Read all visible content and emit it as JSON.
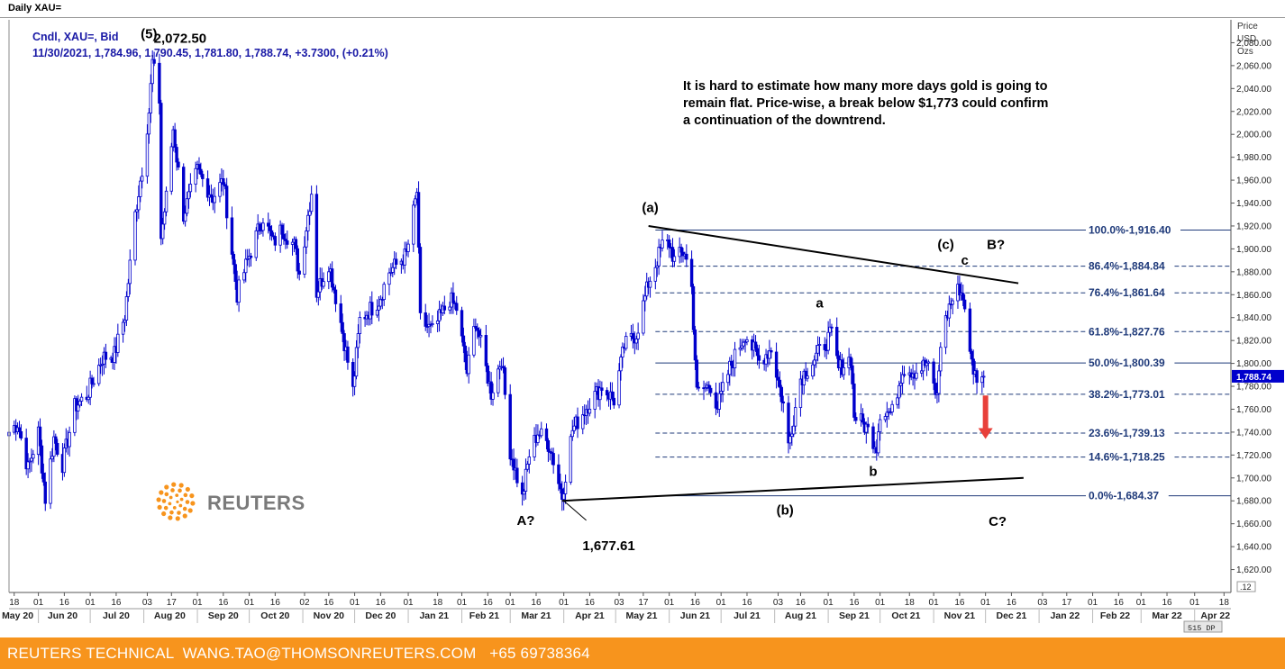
{
  "window": {
    "title": "Daily XAU="
  },
  "legend": {
    "line1": "Cndl, XAU=, Bid",
    "line2": "11/30/2021, 1,784.96, 1,790.45, 1,781.80, 1,788.74, +3.7300, (+0.21%)"
  },
  "commentary": {
    "lines": [
      "It is hard to estimate how many more days gold is going to",
      "remain flat. Price-wise, a break below $1,773 could confirm",
      "a continuation of the downtrend."
    ]
  },
  "axis_header": {
    "line1": "Price",
    "line2": "USD",
    "line3": "Ozs"
  },
  "footer": {
    "text": "REUTERS TECHNICAL  WANG.TAO@THOMSONREUTERS.COM   +65 69738364"
  },
  "branding": {
    "logo_text": "REUTERS",
    "logo_icon": "reuters-dot-ring-icon"
  },
  "status": {
    "scale": "515 DP",
    "corner": ".12"
  },
  "colors": {
    "candle": "#0000cc",
    "accent": "#f7941d",
    "fib_line": "#1f3a7a",
    "arrow": "#e8403a",
    "last_price_bg": "#0000cc"
  },
  "chart_data": {
    "type": "candlestick",
    "title": "Daily XAU=",
    "ylabel": "Price USD Ozs",
    "ylim": [
      1600,
      2100
    ],
    "yticks": [
      1620,
      1640,
      1660,
      1680,
      1700,
      1720,
      1740,
      1760,
      1780,
      1800,
      1820,
      1840,
      1860,
      1880,
      1900,
      1920,
      1940,
      1960,
      1980,
      2000,
      2020,
      2040,
      2060,
      2080
    ],
    "ytick_labels": [
      "1,620.00",
      "1,640.00",
      "1,660.00",
      "1,680.00",
      "1,700.00",
      "1,720.00",
      "1,740.00",
      "1,760.00",
      "1,780.00",
      "1,800.00",
      "1,820.00",
      "1,840.00",
      "1,860.00",
      "1,880.00",
      "1,900.00",
      "1,920.00",
      "1,940.00",
      "1,960.00",
      "1,980.00",
      "2,000.00",
      "2,020.00",
      "2,040.00",
      "2,060.00",
      "2,080.00"
    ],
    "last_price": 1788.74,
    "last_price_label": "1,788.74",
    "x_start": "2020-05-15",
    "x_end": "2022-04-22",
    "day_ticks": [
      [
        "2020-05-18",
        "18"
      ],
      [
        "2020-06-01",
        "01"
      ],
      [
        "2020-06-16",
        "16"
      ],
      [
        "2020-07-01",
        "01"
      ],
      [
        "2020-07-16",
        "16"
      ],
      [
        "2020-08-03",
        "03"
      ],
      [
        "2020-08-17",
        "17"
      ],
      [
        "2020-09-01",
        "01"
      ],
      [
        "2020-09-16",
        "16"
      ],
      [
        "2020-10-01",
        "01"
      ],
      [
        "2020-10-16",
        "16"
      ],
      [
        "2020-11-02",
        "02"
      ],
      [
        "2020-11-16",
        "16"
      ],
      [
        "2020-12-01",
        "01"
      ],
      [
        "2020-12-16",
        "16"
      ],
      [
        "2021-01-01",
        "01"
      ],
      [
        "2021-01-18",
        "18"
      ],
      [
        "2021-02-01",
        "01"
      ],
      [
        "2021-02-16",
        "16"
      ],
      [
        "2021-03-01",
        "01"
      ],
      [
        "2021-03-16",
        "16"
      ],
      [
        "2021-04-01",
        "01"
      ],
      [
        "2021-04-16",
        "16"
      ],
      [
        "2021-05-03",
        "03"
      ],
      [
        "2021-05-17",
        "17"
      ],
      [
        "2021-06-01",
        "01"
      ],
      [
        "2021-06-16",
        "16"
      ],
      [
        "2021-07-01",
        "01"
      ],
      [
        "2021-07-16",
        "16"
      ],
      [
        "2021-08-03",
        "03"
      ],
      [
        "2021-08-16",
        "16"
      ],
      [
        "2021-09-01",
        "01"
      ],
      [
        "2021-09-16",
        "16"
      ],
      [
        "2021-10-01",
        "01"
      ],
      [
        "2021-10-18",
        "18"
      ],
      [
        "2021-11-01",
        "01"
      ],
      [
        "2021-11-16",
        "16"
      ],
      [
        "2021-12-01",
        "01"
      ],
      [
        "2021-12-16",
        "16"
      ],
      [
        "2022-01-03",
        "03"
      ],
      [
        "2022-01-17",
        "17"
      ],
      [
        "2022-02-01",
        "01"
      ],
      [
        "2022-02-16",
        "16"
      ],
      [
        "2022-03-01",
        "01"
      ],
      [
        "2022-03-16",
        "16"
      ],
      [
        "2022-04-01",
        "01"
      ],
      [
        "2022-04-18",
        "18"
      ]
    ],
    "month_labels": [
      [
        "2020-05-20",
        "May 20"
      ],
      [
        "2020-06-15",
        "Jun 20"
      ],
      [
        "2020-07-16",
        "Jul 20"
      ],
      [
        "2020-08-16",
        "Aug 20"
      ],
      [
        "2020-09-16",
        "Sep 20"
      ],
      [
        "2020-10-16",
        "Oct 20"
      ],
      [
        "2020-11-16",
        "Nov 20"
      ],
      [
        "2020-12-16",
        "Dec 20"
      ],
      [
        "2021-01-16",
        "Jan 21"
      ],
      [
        "2021-02-14",
        "Feb 21"
      ],
      [
        "2021-03-16",
        "Mar 21"
      ],
      [
        "2021-04-16",
        "Apr 21"
      ],
      [
        "2021-05-16",
        "May 21"
      ],
      [
        "2021-06-16",
        "Jun 21"
      ],
      [
        "2021-07-16",
        "Jul 21"
      ],
      [
        "2021-08-16",
        "Aug 21"
      ],
      [
        "2021-09-16",
        "Sep 21"
      ],
      [
        "2021-10-16",
        "Oct 21"
      ],
      [
        "2021-11-16",
        "Nov 21"
      ],
      [
        "2021-12-16",
        "Dec 21"
      ],
      [
        "2022-01-16",
        "Jan 22"
      ],
      [
        "2022-02-14",
        "Feb 22"
      ],
      [
        "2022-03-16",
        "Mar 22"
      ],
      [
        "2022-04-13",
        "Apr 22"
      ]
    ],
    "price_path": [
      [
        "2020-05-15",
        1740
      ],
      [
        "2020-05-20",
        1748
      ],
      [
        "2020-05-26",
        1708
      ],
      [
        "2020-06-01",
        1740
      ],
      [
        "2020-06-05",
        1682
      ],
      [
        "2020-06-10",
        1735
      ],
      [
        "2020-06-15",
        1712
      ],
      [
        "2020-06-22",
        1762
      ],
      [
        "2020-06-29",
        1772
      ],
      [
        "2020-07-08",
        1805
      ],
      [
        "2020-07-15",
        1808
      ],
      [
        "2020-07-21",
        1842
      ],
      [
        "2020-07-27",
        1930
      ],
      [
        "2020-07-31",
        1970
      ],
      [
        "2020-08-04",
        2020
      ],
      [
        "2020-08-06",
        2063
      ],
      [
        "2020-08-10",
        2030
      ],
      [
        "2020-08-11",
        1910
      ],
      [
        "2020-08-14",
        1945
      ],
      [
        "2020-08-18",
        2005
      ],
      [
        "2020-08-24",
        1930
      ],
      [
        "2020-09-01",
        1968
      ],
      [
        "2020-09-10",
        1945
      ],
      [
        "2020-09-16",
        1960
      ],
      [
        "2020-09-24",
        1860
      ],
      [
        "2020-09-30",
        1890
      ],
      [
        "2020-10-09",
        1928
      ],
      [
        "2020-10-15",
        1905
      ],
      [
        "2020-10-20",
        1918
      ],
      [
        "2020-10-27",
        1903
      ],
      [
        "2020-10-30",
        1878
      ],
      [
        "2020-11-06",
        1950
      ],
      [
        "2020-11-09",
        1862
      ],
      [
        "2020-11-16",
        1888
      ],
      [
        "2020-11-23",
        1836
      ],
      [
        "2020-11-30",
        1776
      ],
      [
        "2020-12-04",
        1838
      ],
      [
        "2020-12-15",
        1855
      ],
      [
        "2020-12-21",
        1880
      ],
      [
        "2020-12-31",
        1895
      ],
      [
        "2021-01-06",
        1950
      ],
      [
        "2021-01-08",
        1838
      ],
      [
        "2021-01-15",
        1828
      ],
      [
        "2021-01-25",
        1856
      ],
      [
        "2021-01-29",
        1848
      ],
      [
        "2021-02-04",
        1792
      ],
      [
        "2021-02-09",
        1838
      ],
      [
        "2021-02-18",
        1774
      ],
      [
        "2021-02-24",
        1805
      ],
      [
        "2021-03-01",
        1724
      ],
      [
        "2021-03-08",
        1682
      ],
      [
        "2021-03-12",
        1720
      ],
      [
        "2021-03-17",
        1740
      ],
      [
        "2021-03-24",
        1728
      ],
      [
        "2021-03-31",
        1684
      ],
      [
        "2021-04-06",
        1742
      ],
      [
        "2021-04-15",
        1764
      ],
      [
        "2021-04-23",
        1780
      ],
      [
        "2021-04-30",
        1768
      ],
      [
        "2021-05-06",
        1815
      ],
      [
        "2021-05-13",
        1826
      ],
      [
        "2021-05-20",
        1870
      ],
      [
        "2021-05-28",
        1903
      ],
      [
        "2021-06-01",
        1905
      ],
      [
        "2021-06-04",
        1890
      ],
      [
        "2021-06-10",
        1898
      ],
      [
        "2021-06-14",
        1866
      ],
      [
        "2021-06-17",
        1774
      ],
      [
        "2021-06-25",
        1781
      ],
      [
        "2021-06-29",
        1762
      ],
      [
        "2021-07-06",
        1796
      ],
      [
        "2021-07-15",
        1826
      ],
      [
        "2021-07-23",
        1802
      ],
      [
        "2021-07-30",
        1813
      ],
      [
        "2021-08-06",
        1764
      ],
      [
        "2021-08-09",
        1728
      ],
      [
        "2021-08-16",
        1787
      ],
      [
        "2021-08-24",
        1804
      ],
      [
        "2021-09-03",
        1826
      ],
      [
        "2021-09-07",
        1795
      ],
      [
        "2021-09-14",
        1805
      ],
      [
        "2021-09-16",
        1755
      ],
      [
        "2021-09-23",
        1744
      ],
      [
        "2021-09-29",
        1728
      ],
      [
        "2021-10-01",
        1758
      ],
      [
        "2021-10-08",
        1757
      ],
      [
        "2021-10-14",
        1796
      ],
      [
        "2021-10-22",
        1793
      ],
      [
        "2021-10-28",
        1800
      ],
      [
        "2021-11-03",
        1770
      ],
      [
        "2021-11-05",
        1818
      ],
      [
        "2021-11-10",
        1850
      ],
      [
        "2021-11-16",
        1866
      ],
      [
        "2021-11-19",
        1852
      ],
      [
        "2021-11-22",
        1806
      ],
      [
        "2021-11-25",
        1790
      ],
      [
        "2021-11-30",
        1788.74
      ]
    ],
    "fib_levels": [
      {
        "label": "100.0%-1,916.40",
        "value": 1916.4,
        "style": "solid"
      },
      {
        "label": "86.4%-1,884.84",
        "value": 1884.84,
        "style": "dashed"
      },
      {
        "label": "76.4%-1,861.64",
        "value": 1861.64,
        "style": "dashed"
      },
      {
        "label": "61.8%-1,827.76",
        "value": 1827.76,
        "style": "dashed"
      },
      {
        "label": "50.0%-1,800.39",
        "value": 1800.39,
        "style": "solid"
      },
      {
        "label": "38.2%-1,773.01",
        "value": 1773.01,
        "style": "dashed"
      },
      {
        "label": "23.6%-1,739.13",
        "value": 1739.13,
        "style": "dashed"
      },
      {
        "label": "14.6%-1,718.25",
        "value": 1718.25,
        "style": "dashed"
      },
      {
        "label": "0.0%-1,684.37",
        "value": 1684.37,
        "style": "solid"
      }
    ],
    "trendlines": [
      {
        "name": "upper",
        "from": [
          "2021-05-20",
          1920
        ],
        "to": [
          "2021-12-20",
          1870
        ]
      },
      {
        "name": "lower",
        "from": [
          "2021-03-31",
          1680
        ],
        "to": [
          "2021-12-23",
          1700
        ]
      },
      {
        "name": "pointer",
        "from": [
          "2021-04-01",
          1680
        ],
        "to": [
          "2021-04-14",
          1663
        ]
      }
    ],
    "annotations": [
      {
        "text": "(5)",
        "x": "2020-08-04",
        "y": 2084
      },
      {
        "text": "2,072.50",
        "x": "2020-08-22",
        "y": 2080
      },
      {
        "text": "(a)",
        "x": "2021-05-21",
        "y": 1932
      },
      {
        "text": "A?",
        "x": "2021-03-10",
        "y": 1659
      },
      {
        "text": "1,677.61",
        "x": "2021-04-27",
        "y": 1637
      },
      {
        "text": "(b)",
        "x": "2021-08-07",
        "y": 1668
      },
      {
        "text": "a",
        "x": "2021-08-27",
        "y": 1849
      },
      {
        "text": "b",
        "x": "2021-09-27",
        "y": 1702
      },
      {
        "text": "(c)",
        "x": "2021-11-08",
        "y": 1900
      },
      {
        "text": "c",
        "x": "2021-11-19",
        "y": 1886
      },
      {
        "text": "B?",
        "x": "2021-12-07",
        "y": 1900
      },
      {
        "text": "C?",
        "x": "2021-12-08",
        "y": 1658
      }
    ],
    "arrow": {
      "x": "2021-12-01",
      "from": 1772,
      "to": 1734
    },
    "grid": false,
    "legend": "top-left"
  }
}
